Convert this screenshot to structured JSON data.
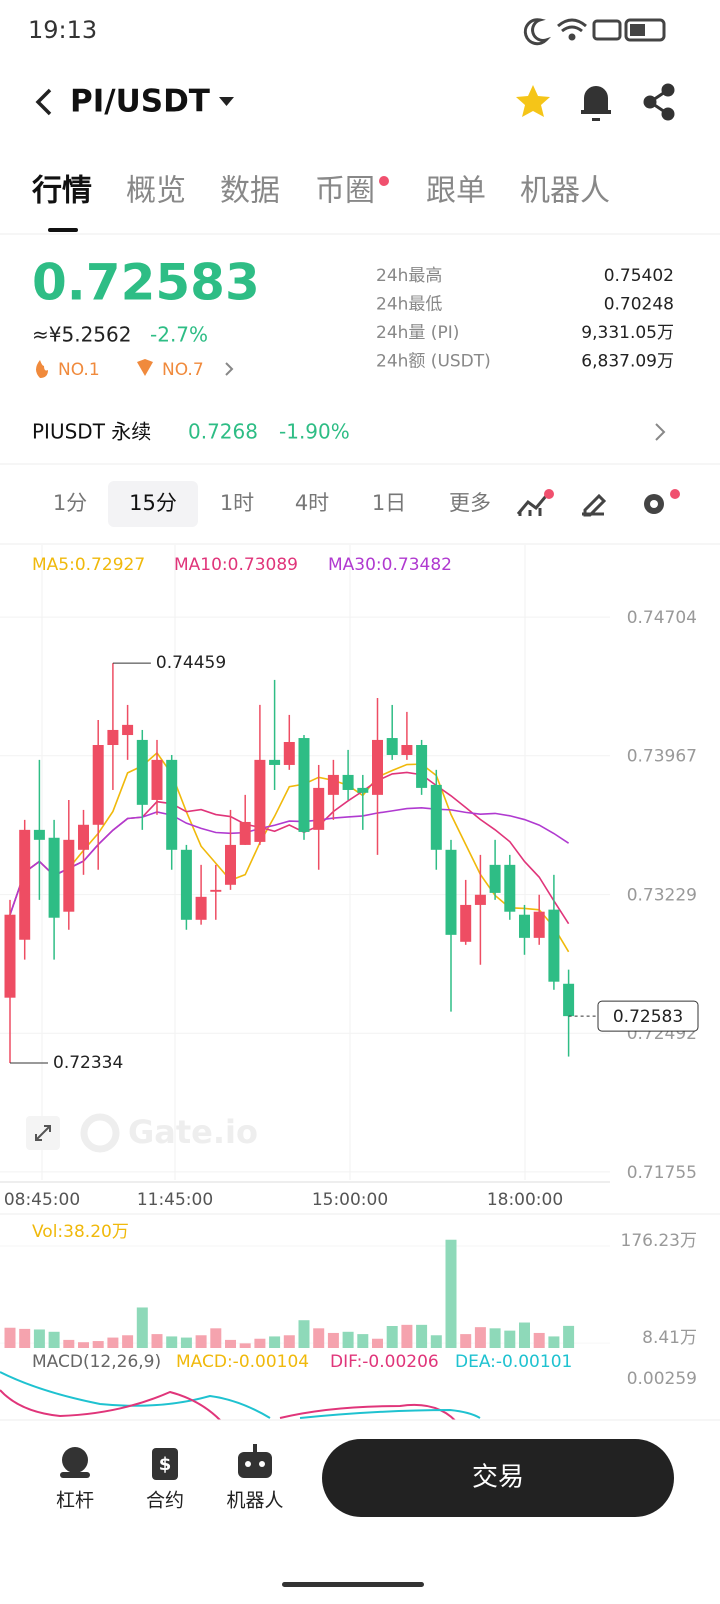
{
  "status_bar": {
    "time": "19:13"
  },
  "header": {
    "pair": "PI/USDT"
  },
  "tabs": [
    "行情",
    "概览",
    "数据",
    "币圈",
    "跟单",
    "机器人"
  ],
  "ticker": {
    "price": "0.72583",
    "cny": "≈¥5.2562",
    "change": "-2.7%",
    "rank1": "NO.1",
    "rank2": "NO.7",
    "stats": [
      {
        "label": "24h最高",
        "value": "0.75402"
      },
      {
        "label": "24h最低",
        "value": "0.70248"
      },
      {
        "label": "24h量 (PI)",
        "value": "9,331.05万"
      },
      {
        "label": "24h额 (USDT)",
        "value": "6,837.09万"
      }
    ]
  },
  "perp": {
    "name": "PIUSDT 永续",
    "price": "0.7268",
    "change": "-1.90%"
  },
  "intervals": [
    "1分",
    "15分",
    "1时",
    "4时",
    "1日",
    "更多"
  ],
  "kline": {
    "type": "candlestick",
    "ma_labels": [
      "MA5:0.72927",
      "MA10:0.73089",
      "MA30:0.73482"
    ],
    "ylim": [
      0.71712,
      0.74901
    ],
    "yticks": [
      0.74704,
      0.73967,
      0.73229,
      0.72492,
      0.71755
    ],
    "xticks": [
      "08:45:00",
      "11:45:00",
      "15:00:00",
      "18:00:00"
    ],
    "high_label": "0.74459",
    "low_label": "0.72334",
    "last_price": "0.72583",
    "watermark": "Gate.io",
    "candles": [
      {
        "open": 0.72681,
        "high": 0.73201,
        "low": 0.72334,
        "close": 0.73122
      },
      {
        "open": 0.72989,
        "high": 0.73626,
        "low": 0.72883,
        "close": 0.73573
      },
      {
        "open": 0.73573,
        "high": 0.73945,
        "low": 0.73201,
        "close": 0.7352
      },
      {
        "open": 0.73531,
        "high": 0.73626,
        "low": 0.72883,
        "close": 0.73106
      },
      {
        "open": 0.73138,
        "high": 0.73732,
        "low": 0.73042,
        "close": 0.7352
      },
      {
        "open": 0.73467,
        "high": 0.73679,
        "low": 0.73334,
        "close": 0.736
      },
      {
        "open": 0.736,
        "high": 0.74157,
        "low": 0.73361,
        "close": 0.74024
      },
      {
        "open": 0.74024,
        "high": 0.74459,
        "low": 0.73785,
        "close": 0.74104
      },
      {
        "open": 0.74077,
        "high": 0.74237,
        "low": 0.73945,
        "close": 0.74131
      },
      {
        "open": 0.74051,
        "high": 0.74104,
        "low": 0.73573,
        "close": 0.73706
      },
      {
        "open": 0.73732,
        "high": 0.74051,
        "low": 0.73653,
        "close": 0.73945
      },
      {
        "open": 0.73945,
        "high": 0.73971,
        "low": 0.73361,
        "close": 0.73467
      },
      {
        "open": 0.73467,
        "high": 0.73493,
        "low": 0.73042,
        "close": 0.73095
      },
      {
        "open": 0.73095,
        "high": 0.73387,
        "low": 0.73069,
        "close": 0.73217
      },
      {
        "open": 0.73244,
        "high": 0.73387,
        "low": 0.73095,
        "close": 0.73254
      },
      {
        "open": 0.73281,
        "high": 0.73679,
        "low": 0.73254,
        "close": 0.73493
      },
      {
        "open": 0.73493,
        "high": 0.73759,
        "low": 0.73493,
        "close": 0.73615
      },
      {
        "open": 0.73509,
        "high": 0.74237,
        "low": 0.73493,
        "close": 0.73945
      },
      {
        "open": 0.73945,
        "high": 0.7437,
        "low": 0.73785,
        "close": 0.73918
      },
      {
        "open": 0.73918,
        "high": 0.74184,
        "low": 0.73892,
        "close": 0.7404
      },
      {
        "open": 0.74061,
        "high": 0.74077,
        "low": 0.7352,
        "close": 0.73562
      },
      {
        "open": 0.73573,
        "high": 0.73918,
        "low": 0.73361,
        "close": 0.73796
      },
      {
        "open": 0.73759,
        "high": 0.73945,
        "low": 0.73626,
        "close": 0.73865
      },
      {
        "open": 0.73865,
        "high": 0.73998,
        "low": 0.73732,
        "close": 0.73785
      },
      {
        "open": 0.73796,
        "high": 0.73865,
        "low": 0.73573,
        "close": 0.7377
      },
      {
        "open": 0.73759,
        "high": 0.74274,
        "low": 0.7344,
        "close": 0.74051
      },
      {
        "open": 0.74061,
        "high": 0.74237,
        "low": 0.73945,
        "close": 0.73971
      },
      {
        "open": 0.73971,
        "high": 0.742,
        "low": 0.73945,
        "close": 0.74024
      },
      {
        "open": 0.74024,
        "high": 0.74051,
        "low": 0.73759,
        "close": 0.73796
      },
      {
        "open": 0.73812,
        "high": 0.73892,
        "low": 0.73361,
        "close": 0.73467
      },
      {
        "open": 0.73467,
        "high": 0.7352,
        "low": 0.72607,
        "close": 0.73015
      },
      {
        "open": 0.72978,
        "high": 0.73307,
        "low": 0.72962,
        "close": 0.73174
      },
      {
        "open": 0.73174,
        "high": 0.7344,
        "low": 0.72856,
        "close": 0.73228
      },
      {
        "open": 0.73387,
        "high": 0.7352,
        "low": 0.73201,
        "close": 0.73238
      },
      {
        "open": 0.73387,
        "high": 0.7344,
        "low": 0.73095,
        "close": 0.73138
      },
      {
        "open": 0.73122,
        "high": 0.73174,
        "low": 0.72909,
        "close": 0.72999
      },
      {
        "open": 0.72999,
        "high": 0.73228,
        "low": 0.72962,
        "close": 0.73138
      },
      {
        "open": 0.73149,
        "high": 0.73334,
        "low": 0.72723,
        "close": 0.72766
      },
      {
        "open": 0.72755,
        "high": 0.7283,
        "low": 0.72368,
        "close": 0.72583
      }
    ]
  },
  "volume": {
    "label": "Vol:38.20万",
    "ylim": [
      0,
      190
    ],
    "yticks": [
      {
        "value": 176.23,
        "label": "176.23万"
      },
      {
        "value": 8.41,
        "label": "8.41万"
      }
    ],
    "values": [
      35,
      33,
      32,
      28,
      14,
      10,
      12,
      18,
      22,
      70,
      24,
      20,
      18,
      22,
      34,
      14,
      8,
      16,
      20,
      22,
      48,
      34,
      26,
      28,
      24,
      16,
      38,
      40,
      40,
      22,
      187,
      24,
      36,
      34,
      30,
      44,
      26,
      20,
      38.2
    ]
  },
  "macd": {
    "labels": [
      "MACD(12,26,9)",
      "MACD:-0.00104",
      "DIF:-0.00206",
      "DEA:-0.00101"
    ],
    "tick": "0.00259"
  },
  "bottom_nav": {
    "items": [
      "杠杆",
      "合约",
      "机器人"
    ],
    "button": "交易"
  }
}
